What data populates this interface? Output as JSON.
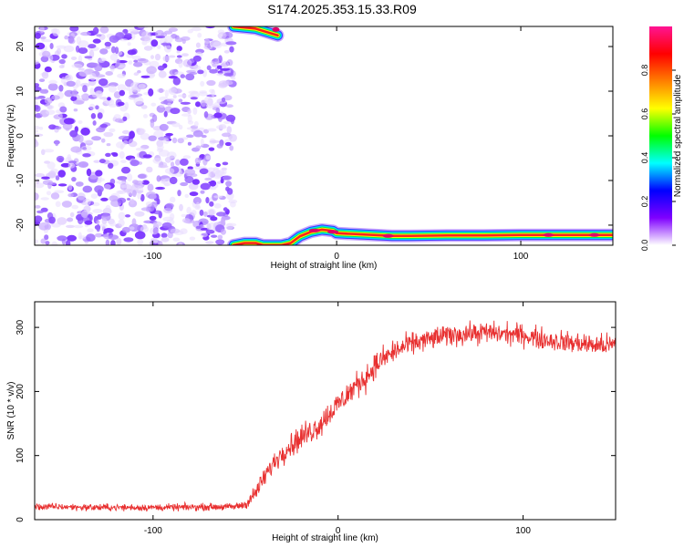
{
  "title": "S174.2025.353.15.33.R09",
  "chart_data": [
    {
      "type": "heatmap",
      "xlabel": "Height of straight line (km)",
      "ylabel": "Frequency (Hz)",
      "xlim": [
        -164,
        150
      ],
      "ylim": [
        -24.5,
        24.5
      ],
      "xticks": [
        -100,
        0,
        100
      ],
      "xtick_labels": [
        "-100",
        "0",
        "100"
      ],
      "yticks": [
        -20,
        -10,
        0,
        10,
        20
      ],
      "ytick_labels": [
        "-20",
        "-10",
        "0",
        "10",
        "20"
      ],
      "colorbar": {
        "label": "Normalized spectral amplitude",
        "range": [
          0,
          1
        ],
        "ticks": [
          0.0,
          0.2,
          0.4,
          0.6,
          0.8
        ],
        "tick_labels": [
          "0.0",
          "0.2",
          "0.4",
          "0.6",
          "0.8"
        ],
        "colors": [
          "#ffffff",
          "#7f00ff",
          "#0000ff",
          "#00ffff",
          "#00ff00",
          "#ffff00",
          "#ff7f00",
          "#ff0000",
          "#ff1493"
        ]
      },
      "noise_region": {
        "x": [
          -164,
          -56
        ],
        "y": [
          -24.5,
          24.5
        ],
        "level": 0.25
      },
      "signal_trace": {
        "x": [
          -56,
          -50,
          -44,
          -40,
          -36,
          -30,
          -25,
          -20,
          -14,
          -8,
          -2,
          0,
          10,
          20,
          30,
          40,
          60,
          80,
          100,
          120,
          150
        ],
        "y": [
          -24.5,
          -24.0,
          -24.0,
          -24.5,
          -24.5,
          -24.5,
          -24.0,
          -22.5,
          -21.5,
          -21.0,
          -21.3,
          -21.8,
          -22.0,
          -22.2,
          -22.4,
          -22.4,
          -22.3,
          -22.3,
          -22.2,
          -22.2,
          -22.2
        ]
      },
      "top_fragment": {
        "x": [
          -56,
          -44,
          -32
        ],
        "y": [
          24.5,
          24.0,
          22.5
        ]
      }
    },
    {
      "type": "line",
      "xlabel": "Height of straight line (km)",
      "ylabel": "SNR (10 * v/v)",
      "xlim": [
        -164,
        150
      ],
      "ylim": [
        0,
        340
      ],
      "xticks": [
        -100,
        0,
        100
      ],
      "xtick_labels": [
        "-100",
        "0",
        "100"
      ],
      "yticks": [
        0,
        100,
        200,
        300
      ],
      "ytick_labels": [
        "0",
        "100",
        "200",
        "300"
      ],
      "color": "#e83030",
      "series": [
        {
          "x": [
            -164,
            -150,
            -130,
            -110,
            -90,
            -70,
            -56,
            -50,
            -45,
            -40,
            -35,
            -30,
            -25,
            -20,
            -15,
            -10,
            -5,
            0,
            5,
            10,
            15,
            20,
            25,
            30,
            40,
            50,
            60,
            70,
            80,
            90,
            100,
            110,
            120,
            130,
            140,
            150
          ],
          "values": [
            20,
            20,
            19,
            19,
            19,
            20,
            20,
            24,
            40,
            65,
            88,
            105,
            118,
            128,
            138,
            148,
            165,
            180,
            195,
            210,
            222,
            240,
            252,
            262,
            275,
            282,
            288,
            290,
            292,
            290,
            288,
            282,
            278,
            275,
            272,
            272
          ],
          "noise_amplitude": [
            8,
            8,
            8,
            8,
            8,
            8,
            8,
            12,
            18,
            22,
            24,
            26,
            28,
            30,
            30,
            30,
            30,
            30,
            30,
            30,
            30,
            30,
            28,
            28,
            25,
            25,
            25,
            25,
            25,
            25,
            25,
            25,
            25,
            25,
            25,
            25
          ]
        }
      ]
    }
  ]
}
